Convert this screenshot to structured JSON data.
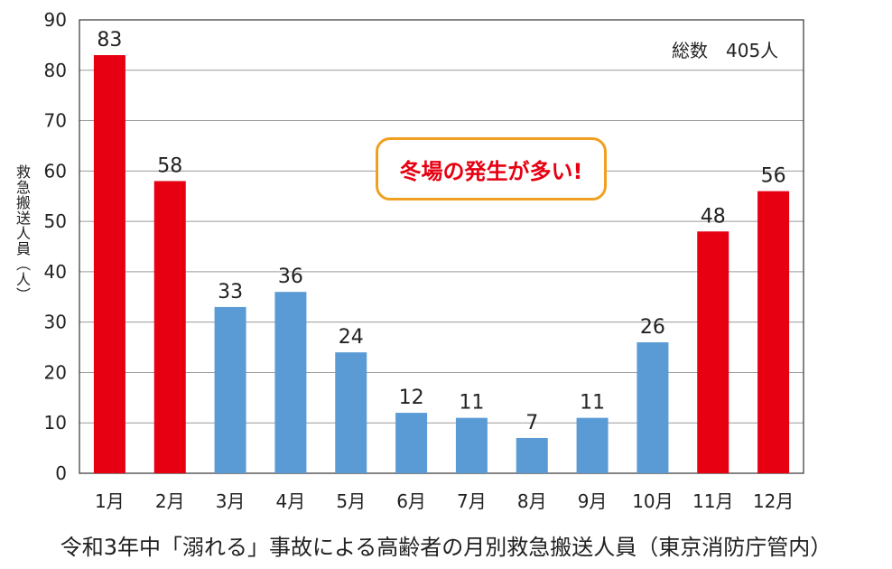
{
  "chart_data": {
    "type": "bar",
    "categories": [
      "1月",
      "2月",
      "3月",
      "4月",
      "5月",
      "6月",
      "7月",
      "8月",
      "9月",
      "10月",
      "11月",
      "12月"
    ],
    "values": [
      83,
      58,
      33,
      36,
      24,
      12,
      11,
      7,
      11,
      26,
      48,
      56
    ],
    "bar_colors": [
      "#e60012",
      "#e60012",
      "#5b9bd5",
      "#5b9bd5",
      "#5b9bd5",
      "#5b9bd5",
      "#5b9bd5",
      "#5b9bd5",
      "#5b9bd5",
      "#5b9bd5",
      "#e60012",
      "#e60012"
    ],
    "ylabel": "救急搬送人員（人）",
    "xlabel": "",
    "ylim": [
      0,
      90
    ],
    "yticks": [
      0,
      10,
      20,
      30,
      40,
      50,
      60,
      70,
      80,
      90
    ],
    "grid": true,
    "annotations": {
      "total": "総数　405人",
      "callout": "冬場の発生が多い!"
    },
    "caption": "令和3年中「溺れる」事故による高齢者の月別救急搬送人員（東京消防庁管内）"
  }
}
